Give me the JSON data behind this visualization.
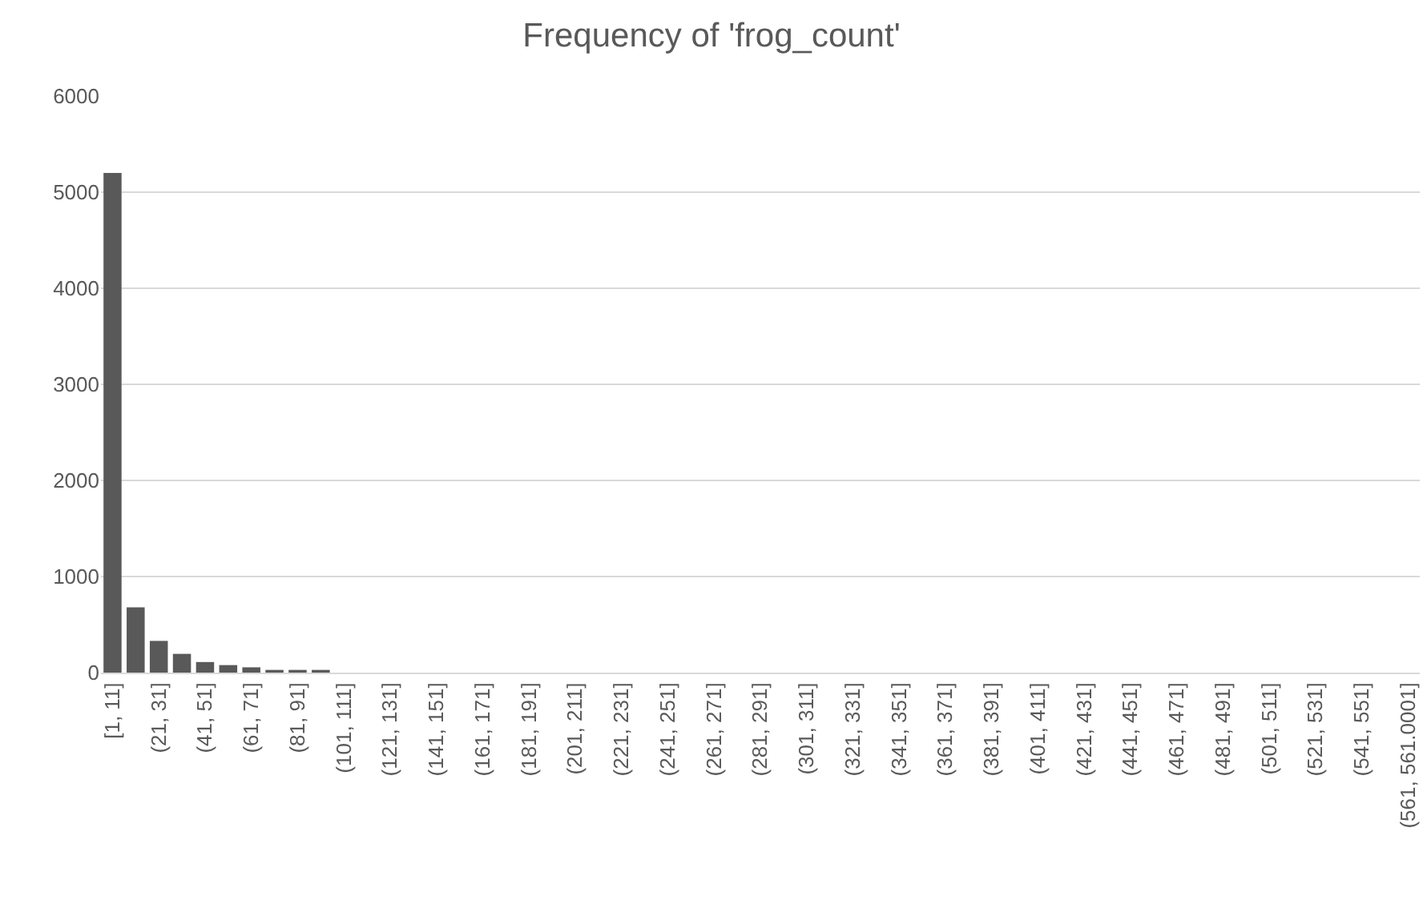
{
  "chart_data": {
    "type": "bar",
    "title": "Frequency of 'frog_count'",
    "categories": [
      "[1, 11]",
      null,
      "(21, 31]",
      null,
      "(41, 51]",
      null,
      "(61, 71]",
      null,
      "(81, 91]",
      null,
      "(101, 111]",
      null,
      "(121, 131]",
      null,
      "(141, 151]",
      null,
      "(161, 171]",
      null,
      "(181, 191]",
      null,
      "(201, 211]",
      null,
      "(221, 231]",
      null,
      "(241, 251]",
      null,
      "(261, 271]",
      null,
      "(281, 291]",
      null,
      "(301, 311]",
      null,
      "(321, 331]",
      null,
      "(341, 351]",
      null,
      "(361, 371]",
      null,
      "(381, 391]",
      null,
      "(401, 411]",
      null,
      "(421, 431]",
      null,
      "(441, 451]",
      null,
      "(461, 471]",
      null,
      "(481, 491]",
      null,
      "(501, 511]",
      null,
      "(521, 531]",
      null,
      "(541, 551]",
      null,
      "(561, 561.0001]"
    ],
    "values": [
      5200,
      680,
      330,
      195,
      110,
      78,
      55,
      28,
      28,
      28,
      0,
      0,
      0,
      0,
      0,
      0,
      0,
      0,
      0,
      0,
      0,
      0,
      0,
      0,
      0,
      0,
      0,
      0,
      0,
      0,
      0,
      0,
      0,
      0,
      0,
      0,
      0,
      0,
      0,
      0,
      0,
      0,
      0,
      0,
      0,
      0,
      0,
      0,
      0,
      0,
      0,
      0,
      0,
      0,
      0,
      0,
      0
    ],
    "color": "#595959",
    "ylim": [
      0,
      6000
    ],
    "yticks": [
      0,
      1000,
      2000,
      3000,
      4000,
      5000,
      6000
    ],
    "grid": "y",
    "legend": false
  }
}
